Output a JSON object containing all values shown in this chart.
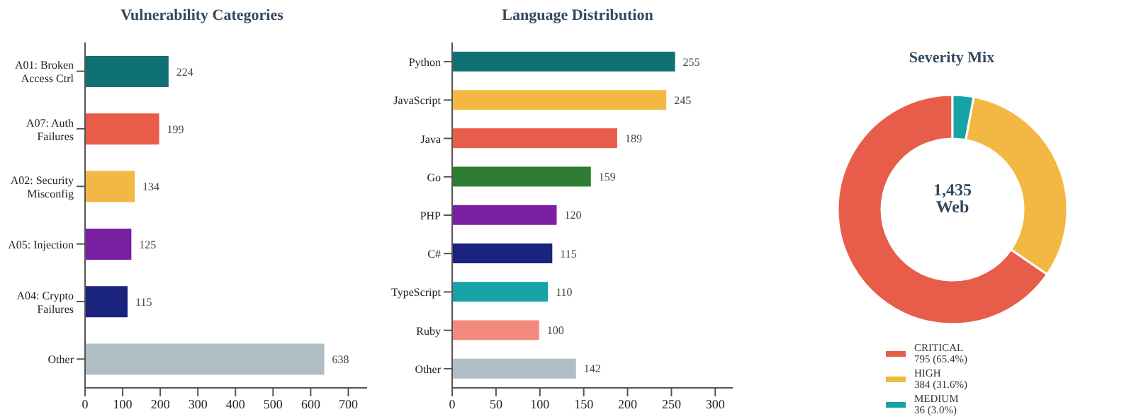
{
  "chart_data": [
    {
      "type": "bar",
      "orientation": "horizontal",
      "title": "Vulnerability Categories",
      "categories": [
        "A01: Broken\nAccess Ctrl",
        "A07: Auth\nFailures",
        "A02: Security\nMisconfig",
        "A05: Injection",
        "A04: Crypto\nFailures",
        "Other"
      ],
      "values": [
        224,
        199,
        134,
        125,
        115,
        638
      ],
      "colors": [
        "#0f7173",
        "#e85d4a",
        "#f2b843",
        "#7b1fa2",
        "#1a237e",
        "#b0bec5"
      ],
      "xlim": [
        0,
        750
      ],
      "xticks": [
        0,
        100,
        200,
        300,
        400,
        500,
        600,
        700
      ],
      "data_labels": true
    },
    {
      "type": "bar",
      "orientation": "horizontal",
      "title": "Language Distribution",
      "categories": [
        "Python",
        "JavaScript",
        "Java",
        "Go",
        "PHP",
        "C#",
        "TypeScript",
        "Ruby",
        "Other"
      ],
      "values": [
        255,
        245,
        189,
        159,
        120,
        115,
        110,
        100,
        142
      ],
      "colors": [
        "#0f7173",
        "#f2b843",
        "#e85d4a",
        "#2e7d32",
        "#7b1fa2",
        "#1a237e",
        "#17a2a8",
        "#f28b7d",
        "#b0bec5"
      ],
      "xlim": [
        0,
        320
      ],
      "xticks": [
        0,
        50,
        100,
        150,
        200,
        250,
        300
      ],
      "data_labels": true
    },
    {
      "type": "donut",
      "title": "Severity Mix",
      "categories": [
        "CRITICAL",
        "HIGH",
        "MEDIUM"
      ],
      "values": [
        795,
        384,
        36
      ],
      "value_labels": [
        "795 (65.4%)",
        "384 (31.6%)",
        "36 (3.0%)"
      ],
      "colors": [
        "#e85d4a",
        "#f2b843",
        "#17a2a8"
      ],
      "legend": "bottom",
      "annotations": [
        "1,435\nWeb"
      ]
    }
  ]
}
